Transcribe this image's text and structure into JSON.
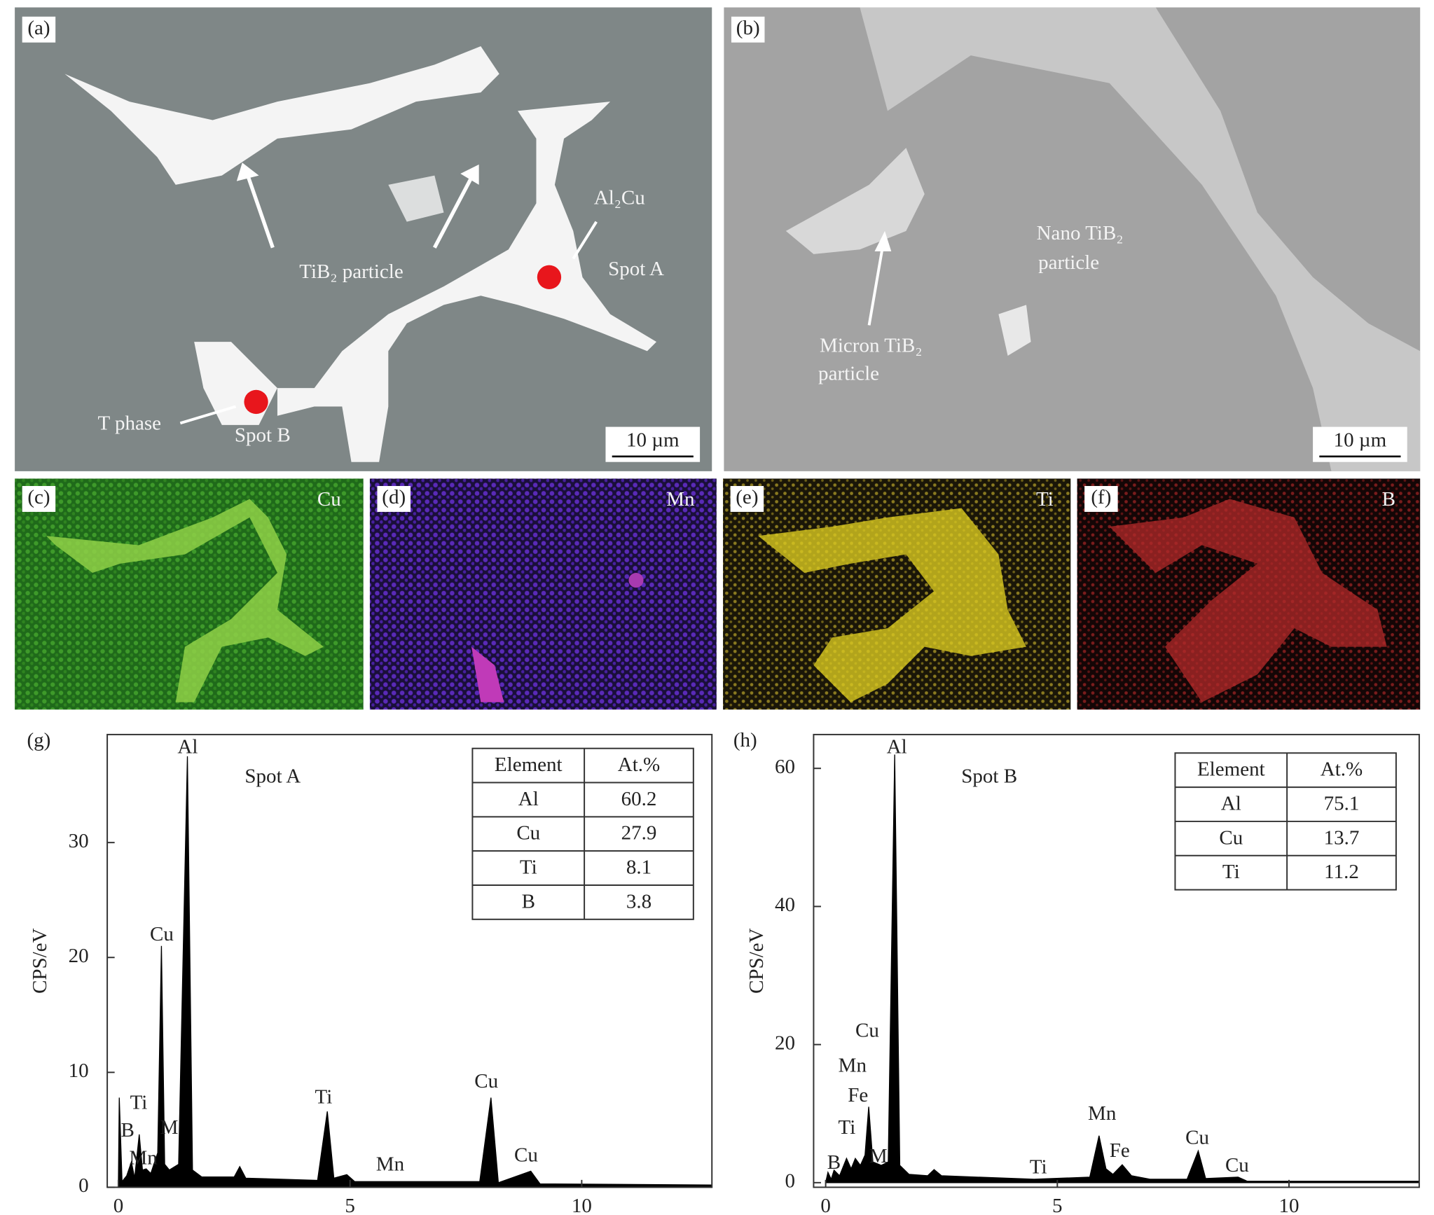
{
  "panels": [
    {
      "label": "(a)",
      "annotations": [
        "TiB₂ particle",
        "Al₂Cu",
        "Spot A",
        "T phase",
        "Spot B"
      ],
      "scale_bar": "10 µm"
    },
    {
      "label": "(b)",
      "annotations": [
        "Nano TiB₂",
        "particle",
        "Micron TiB₂",
        "particle"
      ],
      "scale_bar": "10 µm"
    },
    {
      "label": "(c)",
      "element": "Cu"
    },
    {
      "label": "(d)",
      "element": "Mn"
    },
    {
      "label": "(e)",
      "element": "Ti"
    },
    {
      "label": "(f)",
      "element": "B"
    }
  ],
  "chart_data": [
    {
      "type": "area",
      "panel_label": "(g)",
      "title": "Spot A",
      "y_label": "CPS/eV",
      "color": "#000000",
      "x": [
        0,
        0.02,
        0.08,
        0.18,
        0.28,
        0.35,
        0.45,
        0.52,
        0.6,
        0.7,
        0.85,
        0.93,
        1.0,
        1.1,
        1.3,
        1.49,
        1.6,
        1.8,
        2.5,
        2.62,
        2.75,
        4.3,
        4.51,
        4.65,
        4.93,
        5.1,
        5.9,
        7.8,
        8.04,
        8.2,
        8.9,
        9.1,
        12.8
      ],
      "values": [
        0,
        7.8,
        0.5,
        1.0,
        2.2,
        0.8,
        4.6,
        1.5,
        1.6,
        1.2,
        3,
        21,
        2,
        1.5,
        2,
        37.5,
        1.5,
        0.9,
        0.9,
        1.8,
        0.8,
        0.6,
        6.6,
        0.8,
        1.1,
        0.5,
        0.5,
        0.5,
        7.8,
        0.4,
        1.4,
        0.3,
        0.2
      ],
      "xlim": [
        -0.24,
        12.81
      ],
      "ylim": [
        0,
        39.4
      ],
      "xticks": [
        0,
        5,
        10
      ],
      "yticks": [
        0,
        10,
        20,
        30
      ],
      "annotations": [
        "Al",
        "Cu",
        "Ti",
        "B",
        "M",
        "Mn",
        "Ti",
        "Mn",
        "Cu",
        "Cu"
      ],
      "table": {
        "header": [
          "Element",
          "At.%"
        ],
        "rows": [
          [
            "Al",
            "60.2"
          ],
          [
            "Cu",
            "27.9"
          ],
          [
            "Ti",
            "8.1"
          ],
          [
            "B",
            "3.8"
          ]
        ]
      }
    },
    {
      "type": "area",
      "panel_label": "(h)",
      "title": "Spot B",
      "y_label": "CPS/eV",
      "color": "#000000",
      "x": [
        0,
        0.05,
        0.12,
        0.18,
        0.3,
        0.45,
        0.55,
        0.64,
        0.75,
        0.85,
        0.93,
        1.02,
        1.2,
        1.35,
        1.49,
        1.6,
        1.8,
        2.2,
        2.34,
        2.5,
        4.5,
        5.7,
        5.9,
        6.05,
        6.2,
        6.4,
        6.6,
        7.0,
        7.8,
        8.04,
        8.2,
        8.9,
        9.1,
        12.8
      ],
      "values": [
        0,
        1.5,
        0.5,
        1.8,
        1.0,
        3.5,
        2.0,
        3.5,
        2.5,
        4,
        11,
        3,
        2.5,
        3,
        62,
        2.5,
        1.2,
        1.0,
        1.9,
        1.0,
        0.5,
        0.8,
        6.8,
        2,
        1.2,
        2.6,
        1.0,
        0.5,
        0.5,
        4.6,
        0.6,
        0.8,
        0.2,
        0.2
      ],
      "xlim": [
        -0.26,
        12.81
      ],
      "ylim": [
        -0.67,
        64.9
      ],
      "xticks": [
        0,
        5,
        10
      ],
      "yticks": [
        0,
        20,
        40,
        60
      ],
      "annotations": [
        "Al",
        "Cu",
        "Mn",
        "Fe",
        "Ti",
        "B",
        "M",
        "Ti",
        "Mn",
        "Fe",
        "Cu",
        "Cu"
      ],
      "table": {
        "header": [
          "Element",
          "At.%"
        ],
        "rows": [
          [
            "Al",
            "75.1"
          ],
          [
            "Cu",
            "13.7"
          ],
          [
            "Ti",
            "11.2"
          ]
        ]
      }
    }
  ]
}
